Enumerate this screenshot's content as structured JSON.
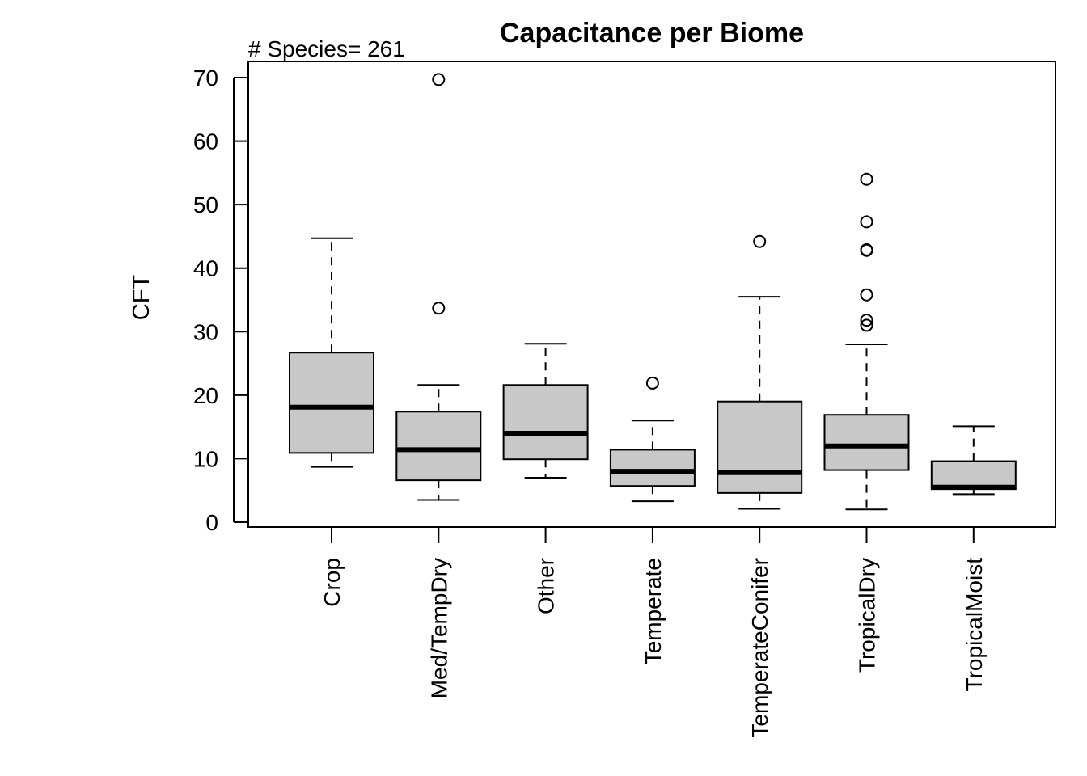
{
  "chart_data": {
    "type": "boxplot",
    "title": "Capacitance per Biome",
    "annotation": "# Species= 261",
    "ylabel": "CFT",
    "xlabel": "",
    "ylim": [
      0,
      70
    ],
    "yticks": [
      0,
      10,
      20,
      30,
      40,
      50,
      60,
      70
    ],
    "grid": false,
    "legend": "none",
    "box_fill": "#c8c8c8",
    "categories": [
      "Crop",
      "Med/TempDry",
      "Other",
      "Temperate",
      "TemperateConifer",
      "TropicalDry",
      "TropicalMoist"
    ],
    "boxes": [
      {
        "name": "Crop",
        "whisker_low": 8.7,
        "q1": 10.9,
        "median": 18.1,
        "q3": 26.7,
        "whisker_high": 44.7,
        "outliers": []
      },
      {
        "name": "Med/TempDry",
        "whisker_low": 3.5,
        "q1": 6.6,
        "median": 11.4,
        "q3": 17.4,
        "whisker_high": 21.6,
        "outliers": [
          33.7,
          69.7
        ]
      },
      {
        "name": "Other",
        "whisker_low": 7.0,
        "q1": 9.9,
        "median": 14.0,
        "q3": 21.6,
        "whisker_high": 28.1,
        "outliers": []
      },
      {
        "name": "Temperate",
        "whisker_low": 3.3,
        "q1": 5.7,
        "median": 8.0,
        "q3": 11.4,
        "whisker_high": 16.0,
        "outliers": [
          21.9
        ]
      },
      {
        "name": "TemperateConifer",
        "whisker_low": 2.1,
        "q1": 4.6,
        "median": 7.8,
        "q3": 19.0,
        "whisker_high": 35.5,
        "outliers": [
          44.2
        ]
      },
      {
        "name": "TropicalDry",
        "whisker_low": 2.0,
        "q1": 8.2,
        "median": 12.0,
        "q3": 16.9,
        "whisker_high": 28.0,
        "outliers": [
          31.0,
          31.8,
          35.8,
          42.8,
          42.9,
          47.3,
          54.0
        ]
      },
      {
        "name": "TropicalMoist",
        "whisker_low": 4.4,
        "q1": 5.2,
        "median": 5.5,
        "q3": 9.6,
        "whisker_high": 15.1,
        "outliers": []
      }
    ]
  }
}
